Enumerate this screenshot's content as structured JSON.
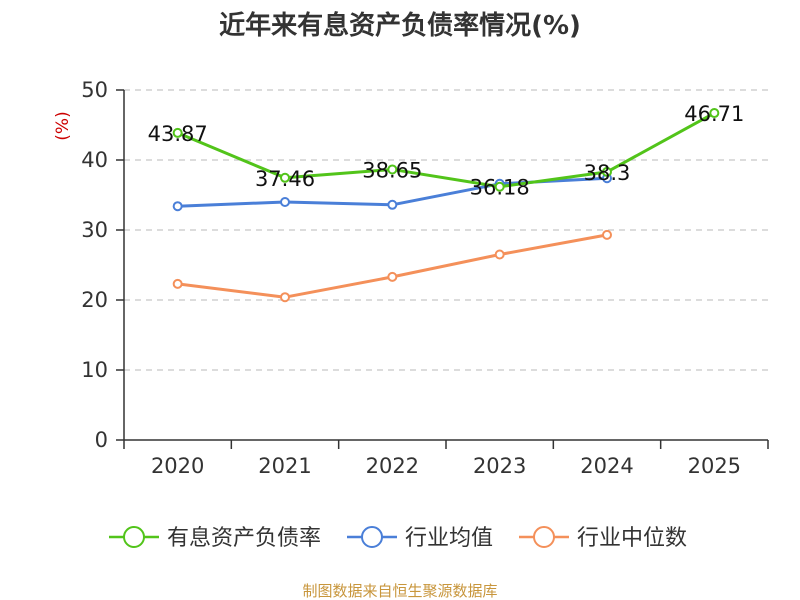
{
  "chart_data": {
    "type": "line",
    "title": "近年来有息资产负债率情况(%)",
    "ylabel": "(%)",
    "xlabel": "",
    "categories": [
      "2020",
      "2021",
      "2022",
      "2023",
      "2024",
      "2025"
    ],
    "ylim": [
      0,
      50
    ],
    "yticks": [
      0,
      10,
      20,
      30,
      40,
      50
    ],
    "grid": true,
    "legend_position": "bottom",
    "series": [
      {
        "name": "有息资产负债率",
        "color": "#52c41a",
        "values": [
          43.87,
          37.46,
          38.65,
          36.18,
          38.3,
          46.71
        ],
        "labels": [
          "43.87",
          "37.46",
          "38.65",
          "36.18",
          "38.3",
          "46.71"
        ]
      },
      {
        "name": "行业均值",
        "color": "#4a7fd8",
        "values": [
          33.4,
          34.0,
          33.6,
          36.6,
          37.4,
          null
        ]
      },
      {
        "name": "行业中位数",
        "color": "#f4905a",
        "values": [
          22.3,
          20.4,
          23.3,
          26.5,
          29.3,
          null
        ]
      }
    ]
  },
  "source": "制图数据来自恒生聚源数据库"
}
